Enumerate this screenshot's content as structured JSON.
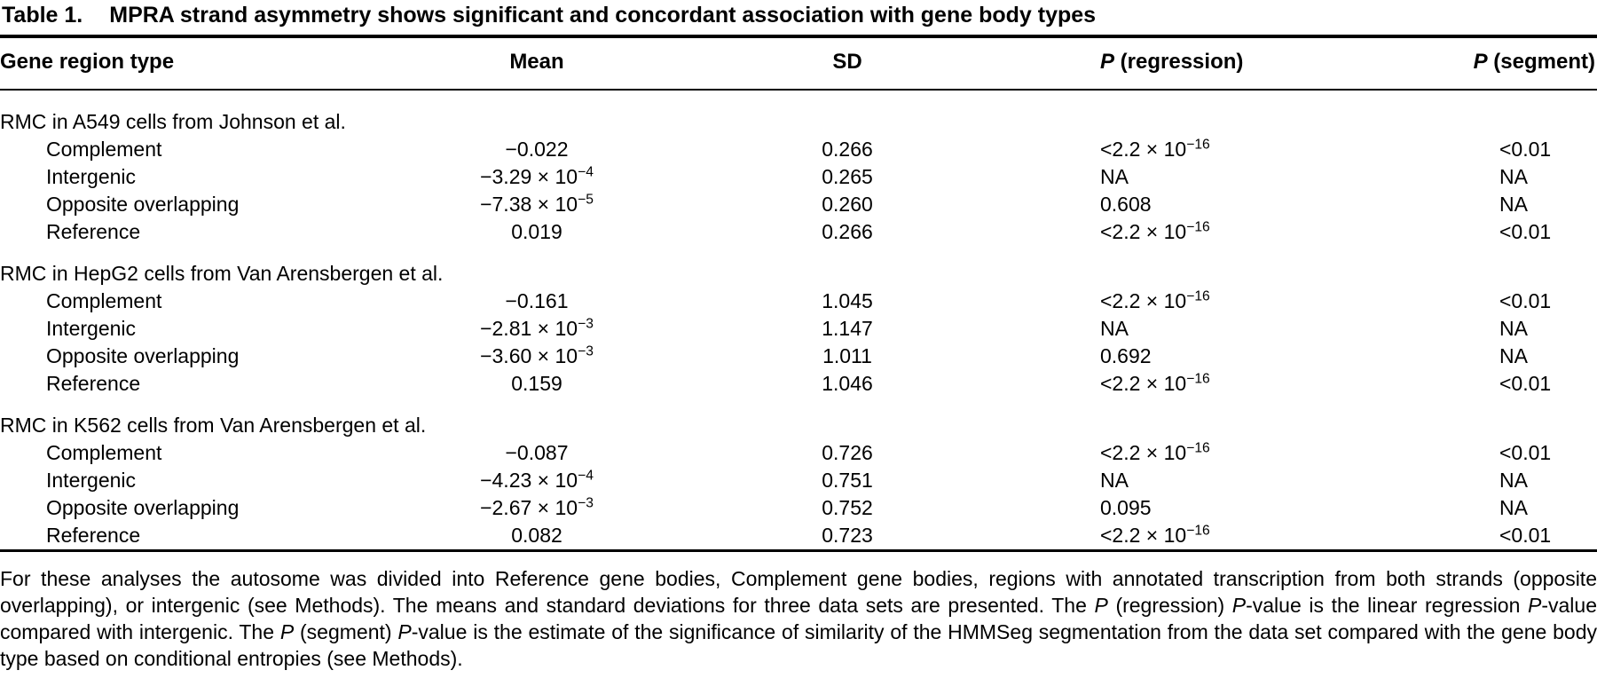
{
  "colors": {
    "text": "#000000",
    "background": "#ffffff",
    "rule": "#000000"
  },
  "table": {
    "label": "Table 1.",
    "title": "MPRA strand asymmetry shows significant and concordant association with gene body types",
    "columns": [
      "Gene region type",
      "Mean",
      "SD",
      "*P* (regression)",
      "*P* (segment)"
    ],
    "groups": [
      {
        "header": "RMC in A549 cells from Johnson et al.",
        "rows": [
          {
            "region": "Complement",
            "mean": "−0.022",
            "sd": "0.266",
            "p_regression": "<2.2 × 10^{−16}",
            "p_segment": "<0.01"
          },
          {
            "region": "Intergenic",
            "mean": "−3.29 × 10^{−4}",
            "sd": "0.265",
            "p_regression": "NA",
            "p_segment": "NA"
          },
          {
            "region": "Opposite overlapping",
            "mean": "−7.38 × 10^{−5}",
            "sd": "0.260",
            "p_regression": "0.608",
            "p_segment": "NA"
          },
          {
            "region": "Reference",
            "mean": "0.019",
            "sd": "0.266",
            "p_regression": "<2.2 × 10^{−16}",
            "p_segment": "<0.01"
          }
        ]
      },
      {
        "header": "RMC in HepG2 cells from Van Arensbergen et al.",
        "rows": [
          {
            "region": "Complement",
            "mean": "−0.161",
            "sd": "1.045",
            "p_regression": "<2.2 × 10^{−16}",
            "p_segment": "<0.01"
          },
          {
            "region": "Intergenic",
            "mean": "−2.81 × 10^{−3}",
            "sd": "1.147",
            "p_regression": "NA",
            "p_segment": "NA"
          },
          {
            "region": "Opposite overlapping",
            "mean": "−3.60 × 10^{−3}",
            "sd": "1.011",
            "p_regression": "0.692",
            "p_segment": "NA"
          },
          {
            "region": "Reference",
            "mean": "0.159",
            "sd": "1.046",
            "p_regression": "<2.2 × 10^{−16}",
            "p_segment": "<0.01"
          }
        ]
      },
      {
        "header": "RMC in K562 cells from Van Arensbergen et al.",
        "rows": [
          {
            "region": "Complement",
            "mean": "−0.087",
            "sd": "0.726",
            "p_regression": "<2.2 × 10^{−16}",
            "p_segment": "<0.01"
          },
          {
            "region": "Intergenic",
            "mean": "−4.23 × 10^{−4}",
            "sd": "0.751",
            "p_regression": "NA",
            "p_segment": "NA"
          },
          {
            "region": "Opposite overlapping",
            "mean": "−2.67 × 10^{−3}",
            "sd": "0.752",
            "p_regression": "0.095",
            "p_segment": "NA"
          },
          {
            "region": "Reference",
            "mean": "0.082",
            "sd": "0.723",
            "p_regression": "<2.2 × 10^{−16}",
            "p_segment": "<0.01"
          }
        ]
      }
    ],
    "footnote": "For these analyses the autosome was divided into Reference gene bodies, Complement gene bodies, regions with annotated transcription from both strands (opposite overlapping), or intergenic (see Methods). The means and standard deviations for three data sets are presented. The *P* (regression) *P*-value is the linear regression *P*-value compared with intergenic. The *P* (segment) *P*-value is the estimate of the significance of similarity of the HMMSeg segmentation from the data set compared with the gene body type based on conditional entropies (see Methods)."
  }
}
